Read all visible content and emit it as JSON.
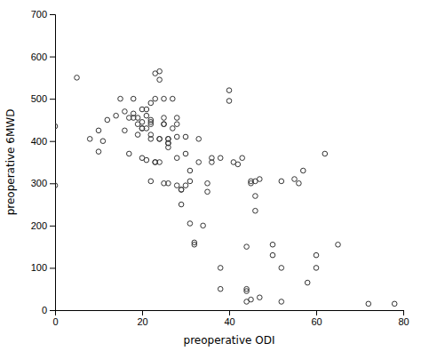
{
  "chart_data": {
    "type": "scatter",
    "x": [
      0,
      0,
      5,
      8,
      10,
      10,
      11,
      12,
      14,
      15,
      16,
      16,
      17,
      17,
      18,
      18,
      18,
      19,
      19,
      19,
      20,
      20,
      20,
      20,
      20,
      21,
      21,
      21,
      21,
      22,
      22,
      22,
      22,
      22,
      22,
      22,
      23,
      23,
      23,
      23,
      24,
      24,
      24,
      24,
      24,
      25,
      25,
      25,
      25,
      25,
      26,
      26,
      26,
      26,
      26,
      26,
      27,
      27,
      28,
      28,
      28,
      28,
      28,
      29,
      29,
      29,
      30,
      30,
      30,
      31,
      31,
      31,
      32,
      32,
      33,
      33,
      34,
      35,
      35,
      36,
      36,
      38,
      38,
      38,
      40,
      40,
      41,
      42,
      43,
      44,
      44,
      44,
      44,
      45,
      45,
      45,
      46,
      46,
      46,
      47,
      47,
      50,
      50,
      52,
      52,
      52,
      55,
      56,
      57,
      58,
      60,
      60,
      62,
      65,
      72,
      78
    ],
    "values": [
      435,
      295,
      550,
      405,
      425,
      375,
      400,
      450,
      460,
      500,
      470,
      425,
      455,
      370,
      500,
      465,
      455,
      455,
      440,
      415,
      475,
      445,
      430,
      430,
      360,
      475,
      460,
      430,
      355,
      490,
      450,
      445,
      440,
      415,
      405,
      305,
      560,
      500,
      350,
      350,
      565,
      545,
      405,
      405,
      350,
      500,
      455,
      440,
      440,
      300,
      405,
      405,
      395,
      395,
      385,
      300,
      430,
      500,
      455,
      440,
      410,
      360,
      295,
      285,
      285,
      250,
      410,
      370,
      295,
      330,
      305,
      205,
      160,
      155,
      405,
      350,
      200,
      300,
      280,
      360,
      350,
      360,
      100,
      50,
      520,
      495,
      350,
      345,
      360,
      150,
      50,
      45,
      20,
      305,
      300,
      25,
      305,
      270,
      235,
      310,
      30,
      155,
      130,
      100,
      305,
      20,
      310,
      300,
      330,
      65,
      130,
      100,
      370,
      155,
      15,
      15
    ],
    "xlim": [
      0,
      80
    ],
    "ylim": [
      0,
      700
    ],
    "xticks": [
      0,
      20,
      40,
      60,
      80
    ],
    "yticks": [
      0,
      100,
      200,
      300,
      400,
      500,
      600,
      700
    ],
    "xlabel": "preoperative ODI",
    "ylabel": "preoperative 6MWD",
    "color": "#333333",
    "marker": "open-circle"
  }
}
